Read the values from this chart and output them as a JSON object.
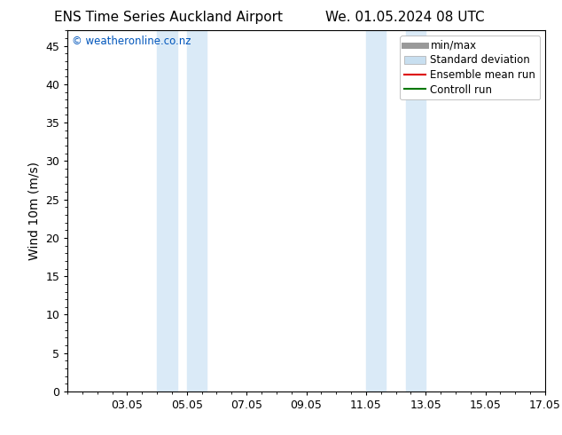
{
  "title_left": "ENS Time Series Auckland Airport",
  "title_right": "We. 01.05.2024 08 UTC",
  "ylabel": "Wind 10m (m/s)",
  "ylim": [
    0,
    47
  ],
  "yticks": [
    0,
    5,
    10,
    15,
    20,
    25,
    30,
    35,
    40,
    45
  ],
  "x_min": 1.0,
  "x_max": 17.0,
  "xtick_labels": [
    "03.05",
    "05.05",
    "07.05",
    "09.05",
    "11.05",
    "13.05",
    "15.05",
    "17.05"
  ],
  "xtick_positions": [
    3,
    5,
    7,
    9,
    11,
    13,
    15,
    17
  ],
  "shaded_bands": [
    {
      "x_start": 4.0,
      "x_end": 4.67,
      "color": "#daeaf7"
    },
    {
      "x_start": 5.0,
      "x_end": 5.67,
      "color": "#daeaf7"
    },
    {
      "x_start": 11.0,
      "x_end": 11.67,
      "color": "#daeaf7"
    },
    {
      "x_start": 12.33,
      "x_end": 13.0,
      "color": "#daeaf7"
    }
  ],
  "watermark_text": "© weatheronline.co.nz",
  "watermark_color": "#0055bb",
  "background_color": "#ffffff",
  "legend_items": [
    {
      "label": "min/max",
      "color": "#999999",
      "type": "line",
      "linewidth": 5
    },
    {
      "label": "Standard deviation",
      "color": "#c8dff0",
      "type": "patch"
    },
    {
      "label": "Ensemble mean run",
      "color": "#dd0000",
      "type": "line",
      "linewidth": 1.5
    },
    {
      "label": "Controll run",
      "color": "#007700",
      "type": "line",
      "linewidth": 1.5
    }
  ],
  "title_fontsize": 11,
  "axis_fontsize": 10,
  "tick_fontsize": 9,
  "legend_fontsize": 8.5
}
